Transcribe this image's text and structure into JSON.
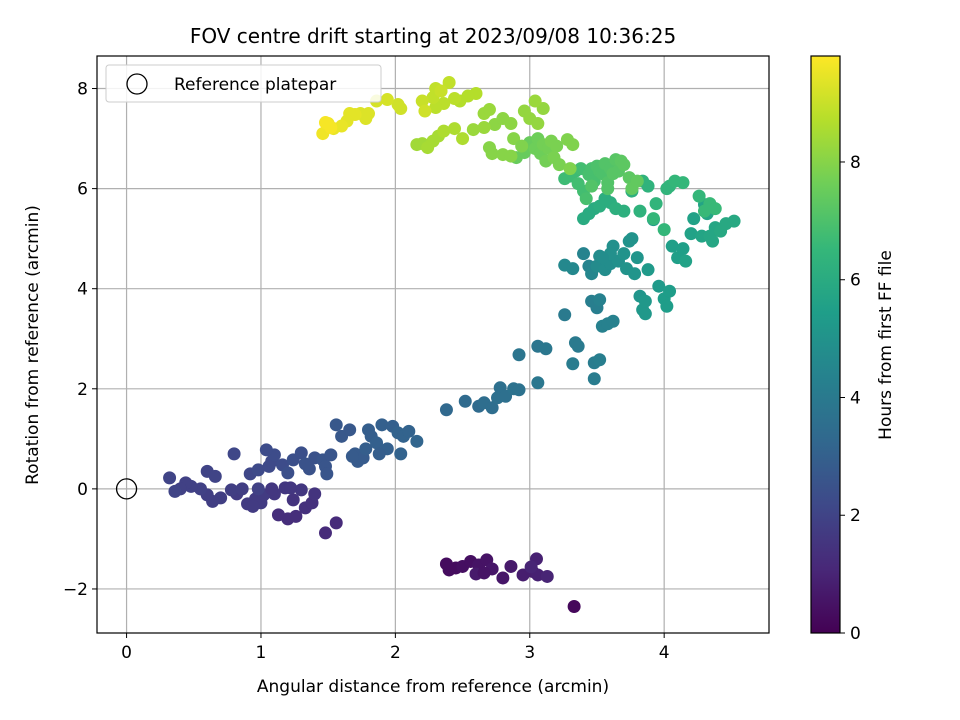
{
  "chart_data": {
    "type": "scatter",
    "title": "FOV centre drift starting at 2023/09/08 10:36:25",
    "xlabel": "Angular distance from reference (arcmin)",
    "ylabel": "Rotation from reference (arcmin)",
    "xlim": [
      -0.22,
      4.78
    ],
    "ylim": [
      -2.88,
      8.65
    ],
    "xticks": [
      0,
      1,
      2,
      3,
      4
    ],
    "yticks": [
      -2,
      0,
      2,
      4,
      6,
      8
    ],
    "grid": true,
    "legend": {
      "entries": [
        "Reference platepar"
      ],
      "placement": "top-left"
    },
    "colorbar": {
      "label": "Hours from first FF file",
      "range": [
        0,
        9.8
      ],
      "ticks": [
        0,
        2,
        4,
        6,
        8
      ],
      "colormap": "viridis",
      "colors": [
        "#440154",
        "#482878",
        "#3e4989",
        "#31688e",
        "#26828e",
        "#1f9e89",
        "#35b779",
        "#6ece58",
        "#b5de2b",
        "#fde725"
      ]
    },
    "reference_point": {
      "x": 0,
      "y": 0
    },
    "points": [
      [
        2.38,
        -1.5,
        0.3
      ],
      [
        2.45,
        -1.58,
        0.3
      ],
      [
        2.5,
        -1.55,
        0.4
      ],
      [
        2.56,
        -1.45,
        0.4
      ],
      [
        2.62,
        -1.52,
        0.5
      ],
      [
        2.68,
        -1.42,
        0.5
      ],
      [
        2.72,
        -1.6,
        0.6
      ],
      [
        2.8,
        -1.78,
        0.6
      ],
      [
        2.6,
        -1.7,
        0.7
      ],
      [
        2.86,
        -1.55,
        0.7
      ],
      [
        2.95,
        -1.72,
        0.8
      ],
      [
        3.02,
        -1.65,
        0.8
      ],
      [
        3.05,
        -1.4,
        0.9
      ],
      [
        3.06,
        -1.72,
        0.9
      ],
      [
        3.13,
        -1.75,
        1.0
      ],
      [
        3.01,
        -1.56,
        1.0
      ],
      [
        3.33,
        -2.35,
        0.2
      ],
      [
        2.4,
        -1.62,
        0.3
      ],
      [
        2.66,
        -1.68,
        0.5
      ],
      [
        1.48,
        -0.88,
        1.2
      ],
      [
        1.56,
        -0.68,
        1.2
      ],
      [
        1.2,
        -0.6,
        1.3
      ],
      [
        1.26,
        -0.55,
        1.3
      ],
      [
        1.13,
        -0.52,
        1.3
      ],
      [
        1.33,
        -0.38,
        1.4
      ],
      [
        1.38,
        -0.28,
        1.4
      ],
      [
        1.24,
        -0.22,
        1.5
      ],
      [
        1.4,
        -0.1,
        1.5
      ],
      [
        1.3,
        -0.02,
        1.6
      ],
      [
        1.18,
        0.02,
        1.6
      ],
      [
        1.1,
        -0.1,
        1.6
      ],
      [
        1.0,
        -0.28,
        1.7
      ],
      [
        0.96,
        -0.2,
        1.7
      ],
      [
        0.9,
        -0.3,
        1.7
      ],
      [
        0.82,
        -0.1,
        1.7
      ],
      [
        0.78,
        -0.02,
        1.8
      ],
      [
        0.7,
        -0.18,
        1.8
      ],
      [
        0.64,
        -0.25,
        1.8
      ],
      [
        0.6,
        -0.12,
        1.8
      ],
      [
        0.55,
        0.0,
        1.9
      ],
      [
        0.48,
        0.05,
        1.9
      ],
      [
        0.44,
        0.12,
        1.9
      ],
      [
        0.4,
        0.0,
        1.9
      ],
      [
        0.36,
        -0.05,
        2.0
      ],
      [
        0.32,
        0.22,
        2.0
      ],
      [
        0.6,
        0.35,
        2.0
      ],
      [
        0.66,
        0.25,
        2.0
      ],
      [
        0.86,
        0.0,
        1.8
      ],
      [
        0.94,
        -0.35,
        1.7
      ],
      [
        1.02,
        -0.12,
        1.7
      ],
      [
        1.08,
        0.0,
        1.6
      ],
      [
        1.22,
        0.02,
        1.6
      ],
      [
        0.98,
        0.0,
        1.9
      ],
      [
        0.92,
        0.3,
        2.1
      ],
      [
        0.8,
        0.7,
        2.1
      ],
      [
        0.98,
        0.38,
        2.2
      ],
      [
        1.06,
        0.45,
        2.2
      ],
      [
        1.08,
        0.55,
        2.2
      ],
      [
        1.1,
        0.68,
        2.3
      ],
      [
        1.16,
        0.48,
        2.3
      ],
      [
        1.2,
        0.32,
        2.4
      ],
      [
        1.24,
        0.58,
        2.4
      ],
      [
        1.3,
        0.72,
        2.4
      ],
      [
        1.33,
        0.5,
        2.5
      ],
      [
        1.36,
        0.4,
        2.5
      ],
      [
        1.4,
        0.62,
        2.5
      ],
      [
        1.46,
        0.58,
        2.6
      ],
      [
        1.48,
        0.45,
        2.6
      ],
      [
        1.49,
        0.3,
        2.6
      ],
      [
        1.52,
        0.68,
        2.6
      ],
      [
        1.56,
        1.28,
        2.7
      ],
      [
        1.6,
        1.05,
        2.7
      ],
      [
        1.66,
        1.18,
        2.7
      ],
      [
        1.7,
        0.7,
        2.8
      ],
      [
        1.72,
        0.55,
        2.8
      ],
      [
        1.76,
        0.62,
        2.8
      ],
      [
        1.78,
        0.8,
        2.9
      ],
      [
        1.8,
        1.18,
        2.9
      ],
      [
        1.82,
        1.05,
        2.9
      ],
      [
        1.86,
        0.92,
        3.0
      ],
      [
        1.9,
        1.28,
        3.0
      ],
      [
        1.94,
        0.8,
        3.0
      ],
      [
        1.98,
        1.25,
        3.0
      ],
      [
        2.02,
        1.12,
        3.1
      ],
      [
        2.04,
        0.7,
        3.1
      ],
      [
        2.06,
        1.05,
        3.1
      ],
      [
        2.1,
        1.15,
        3.1
      ],
      [
        2.16,
        0.95,
        3.2
      ],
      [
        1.04,
        0.78,
        2.3
      ],
      [
        1.68,
        0.65,
        2.8
      ],
      [
        1.88,
        0.7,
        2.9
      ],
      [
        2.38,
        1.58,
        3.3
      ],
      [
        2.52,
        1.75,
        3.4
      ],
      [
        2.62,
        1.65,
        3.4
      ],
      [
        2.66,
        1.72,
        3.5
      ],
      [
        2.72,
        1.62,
        3.5
      ],
      [
        2.76,
        1.82,
        3.6
      ],
      [
        2.78,
        2.02,
        3.6
      ],
      [
        2.82,
        1.85,
        3.6
      ],
      [
        2.88,
        2.0,
        3.7
      ],
      [
        2.92,
        1.98,
        3.7
      ],
      [
        2.92,
        2.68,
        3.8
      ],
      [
        3.06,
        2.85,
        3.8
      ],
      [
        3.12,
        2.8,
        3.9
      ],
      [
        3.06,
        2.12,
        3.9
      ],
      [
        3.26,
        3.48,
        4.0
      ],
      [
        3.34,
        2.92,
        4.0
      ],
      [
        3.36,
        2.85,
        4.0
      ],
      [
        3.32,
        2.5,
        4.1
      ],
      [
        3.48,
        2.2,
        4.1
      ],
      [
        3.48,
        2.52,
        4.1
      ],
      [
        3.52,
        2.58,
        4.2
      ],
      [
        3.46,
        3.75,
        4.2
      ],
      [
        3.5,
        3.62,
        4.2
      ],
      [
        3.52,
        3.78,
        4.3
      ],
      [
        3.54,
        3.25,
        4.3
      ],
      [
        3.58,
        3.3,
        4.3
      ],
      [
        3.62,
        3.35,
        4.3
      ],
      [
        3.4,
        4.7,
        4.4
      ],
      [
        3.44,
        4.45,
        4.4
      ],
      [
        3.46,
        4.3,
        4.5
      ],
      [
        3.26,
        4.47,
        4.6
      ],
      [
        3.32,
        4.4,
        4.6
      ],
      [
        3.5,
        4.45,
        4.7
      ],
      [
        3.52,
        4.65,
        4.7
      ],
      [
        3.56,
        4.38,
        4.8
      ],
      [
        3.6,
        4.5,
        4.8
      ],
      [
        3.62,
        4.85,
        4.9
      ],
      [
        3.66,
        4.55,
        4.9
      ],
      [
        3.7,
        4.7,
        5.0
      ],
      [
        3.72,
        4.4,
        5.0
      ],
      [
        3.74,
        4.95,
        5.0
      ],
      [
        3.78,
        4.3,
        5.1
      ],
      [
        3.8,
        4.62,
        5.1
      ],
      [
        3.82,
        3.85,
        5.1
      ],
      [
        3.84,
        3.58,
        5.2
      ],
      [
        3.86,
        3.5,
        5.2
      ],
      [
        3.86,
        3.75,
        5.2
      ],
      [
        3.88,
        4.38,
        5.3
      ],
      [
        3.92,
        5.38,
        5.3
      ],
      [
        3.96,
        4.05,
        5.3
      ],
      [
        4.0,
        3.8,
        5.4
      ],
      [
        4.02,
        3.65,
        5.4
      ],
      [
        4.04,
        3.95,
        5.4
      ],
      [
        4.06,
        4.85,
        5.5
      ],
      [
        4.1,
        4.62,
        5.5
      ],
      [
        4.14,
        4.8,
        5.5
      ],
      [
        4.16,
        4.55,
        5.6
      ],
      [
        4.2,
        5.1,
        5.6
      ],
      [
        4.22,
        5.4,
        5.6
      ],
      [
        4.28,
        5.05,
        5.7
      ],
      [
        4.3,
        5.68,
        5.7
      ],
      [
        4.32,
        5.5,
        5.7
      ],
      [
        4.34,
        5.05,
        5.8
      ],
      [
        4.36,
        4.95,
        5.8
      ],
      [
        4.38,
        5.22,
        5.8
      ],
      [
        4.42,
        5.15,
        5.9
      ],
      [
        4.46,
        5.3,
        5.9
      ],
      [
        4.52,
        5.35,
        5.9
      ],
      [
        3.76,
        5.0,
        5.0
      ],
      [
        3.6,
        4.7,
        4.9
      ],
      [
        3.54,
        4.62,
        4.8
      ],
      [
        3.4,
        5.4,
        6.0
      ],
      [
        3.44,
        5.5,
        6.0
      ],
      [
        3.48,
        5.6,
        6.0
      ],
      [
        3.52,
        5.65,
        6.1
      ],
      [
        3.56,
        5.8,
        6.1
      ],
      [
        3.6,
        5.72,
        6.1
      ],
      [
        3.64,
        5.6,
        6.2
      ],
      [
        3.7,
        5.55,
        6.2
      ],
      [
        3.76,
        5.95,
        6.2
      ],
      [
        3.82,
        5.55,
        6.3
      ],
      [
        3.84,
        6.15,
        6.3
      ],
      [
        3.88,
        6.05,
        6.3
      ],
      [
        3.94,
        5.7,
        6.4
      ],
      [
        4.02,
        6.0,
        6.4
      ],
      [
        4.04,
        6.05,
        6.4
      ],
      [
        4.08,
        6.15,
        6.5
      ],
      [
        4.14,
        6.12,
        6.5
      ],
      [
        4.26,
        5.85,
        6.5
      ],
      [
        4.3,
        5.55,
        6.6
      ],
      [
        4.34,
        5.7,
        6.6
      ],
      [
        4.38,
        5.6,
        6.6
      ],
      [
        4.0,
        5.18,
        6.5
      ],
      [
        3.92,
        5.4,
        6.5
      ],
      [
        3.26,
        6.2,
        6.7
      ],
      [
        3.3,
        6.25,
        6.7
      ],
      [
        3.34,
        6.35,
        6.7
      ],
      [
        3.36,
        6.1,
        6.8
      ],
      [
        3.38,
        6.4,
        6.8
      ],
      [
        3.4,
        5.95,
        6.8
      ],
      [
        3.44,
        6.28,
        6.9
      ],
      [
        3.46,
        6.4,
        6.9
      ],
      [
        3.48,
        6.15,
        6.9
      ],
      [
        3.5,
        6.45,
        7.0
      ],
      [
        3.52,
        6.35,
        7.0
      ],
      [
        3.54,
        6.3,
        7.0
      ],
      [
        3.56,
        6.5,
        7.1
      ],
      [
        3.58,
        6.12,
        7.1
      ],
      [
        3.6,
        6.4,
        7.1
      ],
      [
        3.62,
        6.3,
        7.2
      ],
      [
        3.64,
        6.58,
        7.2
      ],
      [
        3.66,
        6.35,
        7.2
      ],
      [
        3.68,
        6.55,
        7.3
      ],
      [
        3.7,
        6.48,
        7.3
      ],
      [
        3.74,
        6.22,
        7.3
      ],
      [
        3.76,
        6.0,
        7.4
      ],
      [
        3.8,
        6.15,
        7.4
      ],
      [
        3.46,
        6.05,
        7.1
      ],
      [
        3.58,
        6.0,
        7.1
      ],
      [
        3.42,
        5.8,
        6.9
      ],
      [
        2.9,
        6.62,
        7.5
      ],
      [
        2.96,
        6.72,
        7.5
      ],
      [
        3.0,
        6.92,
        7.5
      ],
      [
        3.04,
        6.8,
        7.6
      ],
      [
        3.06,
        7.0,
        7.6
      ],
      [
        3.08,
        6.7,
        7.6
      ],
      [
        3.1,
        6.88,
        7.7
      ],
      [
        3.12,
        6.55,
        7.7
      ],
      [
        3.14,
        6.8,
        7.7
      ],
      [
        3.16,
        6.95,
        7.8
      ],
      [
        3.18,
        6.62,
        7.8
      ],
      [
        3.22,
        6.48,
        7.8
      ],
      [
        3.28,
        6.98,
        7.9
      ],
      [
        3.3,
        6.4,
        7.9
      ],
      [
        3.32,
        6.88,
        7.9
      ],
      [
        2.7,
        6.82,
        8.0
      ],
      [
        2.72,
        6.7,
        8.0
      ],
      [
        2.8,
        6.68,
        8.0
      ],
      [
        2.86,
        6.65,
        8.0
      ],
      [
        2.74,
        7.28,
        8.1
      ],
      [
        2.8,
        7.4,
        8.1
      ],
      [
        2.86,
        7.3,
        8.1
      ],
      [
        2.96,
        7.55,
        8.2
      ],
      [
        3.0,
        7.4,
        8.2
      ],
      [
        3.06,
        7.3,
        8.2
      ],
      [
        3.1,
        7.6,
        8.2
      ],
      [
        3.04,
        7.75,
        8.3
      ],
      [
        2.66,
        7.5,
        8.3
      ],
      [
        2.7,
        7.58,
        8.3
      ],
      [
        2.58,
        7.18,
        8.3
      ],
      [
        2.66,
        7.22,
        8.3
      ],
      [
        2.88,
        7.0,
        8.0
      ],
      [
        2.94,
        6.85,
        7.9
      ],
      [
        3.2,
        6.85,
        7.8
      ],
      [
        2.16,
        6.88,
        8.4
      ],
      [
        2.2,
        6.9,
        8.4
      ],
      [
        2.24,
        6.82,
        8.5
      ],
      [
        2.28,
        6.95,
        8.5
      ],
      [
        2.32,
        7.05,
        8.5
      ],
      [
        2.36,
        7.15,
        8.6
      ],
      [
        2.44,
        7.2,
        8.6
      ],
      [
        2.5,
        7.0,
        8.6
      ],
      [
        2.6,
        7.9,
        8.7
      ],
      [
        2.54,
        7.85,
        8.7
      ],
      [
        2.48,
        7.75,
        8.7
      ],
      [
        2.44,
        7.8,
        8.8
      ],
      [
        2.36,
        7.7,
        8.8
      ],
      [
        2.3,
        7.62,
        8.8
      ],
      [
        2.28,
        7.82,
        8.9
      ],
      [
        2.3,
        8.0,
        8.9
      ],
      [
        2.4,
        8.12,
        8.9
      ],
      [
        2.34,
        7.95,
        9.0
      ],
      [
        2.2,
        7.75,
        9.0
      ],
      [
        2.22,
        7.55,
        9.1
      ],
      [
        2.04,
        7.6,
        9.1
      ],
      [
        2.02,
        7.68,
        9.1
      ],
      [
        1.94,
        7.78,
        9.2
      ],
      [
        1.86,
        7.75,
        9.2
      ],
      [
        1.8,
        7.5,
        9.3
      ],
      [
        1.78,
        7.4,
        9.3
      ],
      [
        1.74,
        7.5,
        9.3
      ],
      [
        1.7,
        7.48,
        9.4
      ],
      [
        1.66,
        7.5,
        9.4
      ],
      [
        1.64,
        7.35,
        9.4
      ],
      [
        1.6,
        7.25,
        9.5
      ],
      [
        1.54,
        7.2,
        9.5
      ],
      [
        1.5,
        7.3,
        9.6
      ],
      [
        1.46,
        7.1,
        9.6
      ],
      [
        1.48,
        7.32,
        9.7
      ],
      [
        1.52,
        7.22,
        9.7
      ]
    ]
  }
}
